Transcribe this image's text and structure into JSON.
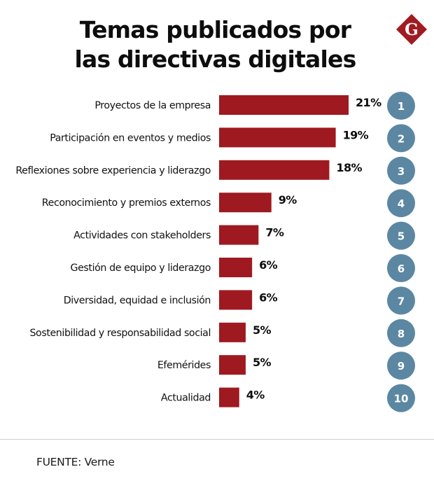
{
  "header": {
    "title_line1": "Temas publicados por",
    "title_line2": "las directivas digitales",
    "logo_letter": "G"
  },
  "colors": {
    "bar": "#9e1a20",
    "rank_circle": "#5b87a3",
    "logo": "#a11b22"
  },
  "chart_data": {
    "type": "bar",
    "orientation": "horizontal",
    "title": "Temas publicados por las directivas digitales",
    "xlabel": "",
    "ylabel": "",
    "unit": "%",
    "grid": false,
    "legend": "none",
    "xlim": [
      0,
      21
    ],
    "categories": [
      "Proyectos de la empresa",
      "Participación en eventos y medios",
      "Reflexiones sobre experiencia y liderazgo",
      "Reconocimiento y premios externos",
      "Actividades con stakeholders",
      "Gestión de equipo y liderazgo",
      "Diversidad, equidad e inclusión",
      "Sostenibilidad y responsabilidad social",
      "Efemérides",
      "Actualidad"
    ],
    "values": [
      21,
      19,
      18,
      9,
      7,
      6,
      6,
      5,
      5,
      4
    ],
    "value_labels": [
      "21%",
      "19%",
      "18%",
      "9%",
      "7%",
      "6%",
      "6%",
      "5%",
      "5%",
      "4%"
    ],
    "ranks": [
      "1",
      "2",
      "3",
      "4",
      "5",
      "6",
      "7",
      "8",
      "9",
      "10"
    ]
  },
  "footer": {
    "source": "FUENTE: Verne"
  }
}
